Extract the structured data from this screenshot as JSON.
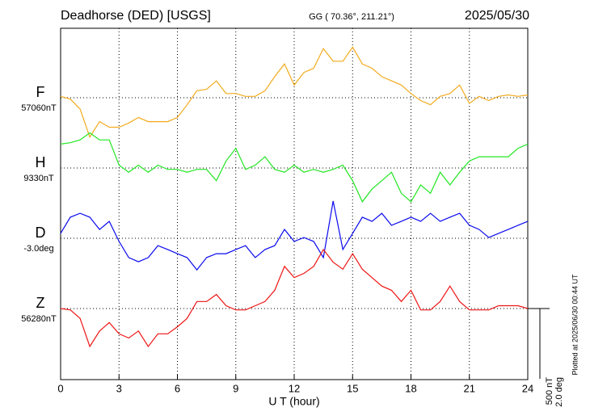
{
  "chart_data": {
    "type": "line",
    "title": "Deadhorse (DED)  [USGS]",
    "subtitle": "GG ( 70.36°, 211.21°)",
    "date": "2025/05/30",
    "xlabel": "U T (hour)",
    "footnote": "Plotted at 2025/06/30 00:44 UT",
    "xlim": [
      0,
      24
    ],
    "xticks": [
      0,
      3,
      6,
      9,
      12,
      15,
      18,
      21,
      24
    ],
    "grid": true,
    "scale_bar": [
      {
        "value": 500,
        "label": "500 nT"
      },
      {
        "value": 2.0,
        "label": "2.0 deg"
      }
    ],
    "x": [
      0,
      0.5,
      1,
      1.5,
      2,
      2.5,
      3,
      3.5,
      4,
      4.5,
      5,
      5.5,
      6,
      6.5,
      7,
      7.5,
      8,
      8.5,
      9,
      9.5,
      10,
      10.5,
      11,
      11.5,
      12,
      12.5,
      13,
      13.5,
      14,
      14.5,
      15,
      15.5,
      16,
      16.5,
      17,
      17.5,
      18,
      18.5,
      19,
      19.5,
      20,
      20.5,
      21,
      21.5,
      22,
      22.5,
      23,
      23.5,
      24
    ],
    "series": [
      {
        "name": "F",
        "baseline_label": "57060nT",
        "color": "#f2ab1e",
        "values": [
          10,
          -10,
          -80,
          -280,
          -170,
          -210,
          -210,
          -180,
          -140,
          -170,
          -170,
          -170,
          -140,
          -50,
          50,
          60,
          120,
          30,
          30,
          10,
          10,
          50,
          150,
          240,
          90,
          180,
          210,
          350,
          260,
          260,
          360,
          240,
          210,
          150,
          120,
          90,
          30,
          -20,
          -50,
          10,
          30,
          90,
          -40,
          10,
          -20,
          10,
          20,
          10,
          20
        ]
      },
      {
        "name": "H",
        "baseline_label": "9330nT",
        "color": "#22e622",
        "values": [
          170,
          180,
          200,
          250,
          200,
          200,
          20,
          -30,
          20,
          -30,
          20,
          -10,
          -10,
          -30,
          -10,
          -10,
          -90,
          50,
          140,
          -10,
          20,
          80,
          -10,
          -30,
          20,
          -30,
          -10,
          -30,
          -10,
          20,
          -90,
          -240,
          -150,
          -90,
          -30,
          -180,
          -240,
          -120,
          -180,
          -30,
          -120,
          -30,
          50,
          80,
          80,
          80,
          80,
          140,
          170
        ]
      },
      {
        "name": "D",
        "baseline_label": "-3.0deg",
        "color": "#0a0aee",
        "values": [
          0.14,
          0.6,
          0.71,
          0.6,
          0.25,
          0.48,
          -0.09,
          -0.55,
          -0.67,
          -0.55,
          -0.21,
          -0.32,
          -0.44,
          -0.55,
          -0.9,
          -0.55,
          -0.44,
          -0.44,
          -0.32,
          -0.21,
          -0.55,
          -0.32,
          -0.21,
          0.25,
          -0.09,
          0.02,
          -0.09,
          -0.55,
          1.06,
          -0.32,
          0.14,
          0.6,
          0.48,
          0.71,
          0.37,
          0.48,
          0.6,
          0.48,
          0.71,
          0.48,
          0.6,
          0.71,
          0.37,
          0.25,
          0.02,
          0.14,
          0.25,
          0.37,
          0.48
        ]
      },
      {
        "name": "Z",
        "baseline_label": "56280nT",
        "color": "#ee1414",
        "values": [
          0,
          -10,
          -70,
          -270,
          -160,
          -100,
          -180,
          -210,
          -160,
          -270,
          -180,
          -180,
          -130,
          -70,
          50,
          50,
          100,
          20,
          -10,
          -10,
          20,
          50,
          130,
          300,
          220,
          250,
          300,
          420,
          330,
          280,
          390,
          280,
          220,
          160,
          130,
          50,
          130,
          -10,
          -10,
          50,
          160,
          50,
          -10,
          -10,
          -10,
          20,
          20,
          20,
          0
        ]
      }
    ]
  }
}
